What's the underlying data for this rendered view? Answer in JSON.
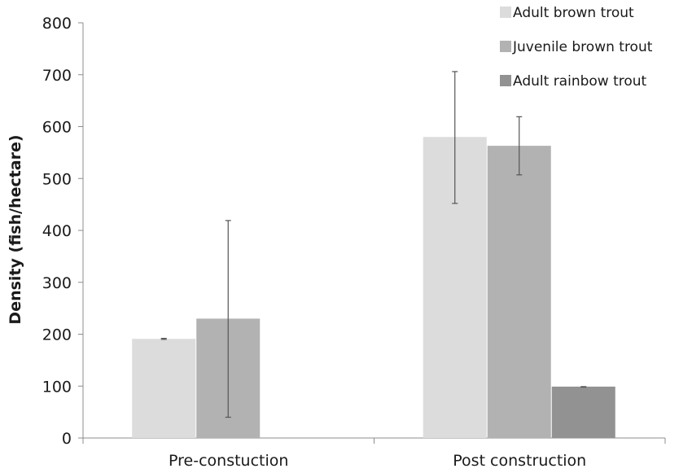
{
  "chart_data": {
    "type": "bar",
    "title": "",
    "xlabel": "",
    "ylabel": "Density (fish/hectare)",
    "ylim": [
      0,
      800
    ],
    "yticks": [
      0,
      100,
      200,
      300,
      400,
      500,
      600,
      700,
      800
    ],
    "categories": [
      "Pre-constuction",
      "Post construction"
    ],
    "series": [
      {
        "name": "Adult brown trout",
        "color": "#dcdcdc",
        "values": [
          191,
          580
        ],
        "errors": [
          [
            190,
            192
          ],
          [
            452,
            706
          ]
        ]
      },
      {
        "name": "Juvenile brown trout",
        "color": "#b2b2b2",
        "values": [
          230,
          563
        ],
        "errors": [
          [
            40,
            419
          ],
          [
            507,
            619
          ]
        ]
      },
      {
        "name": "Adult rainbow trout",
        "color": "#929292",
        "values": [
          0,
          99
        ],
        "errors": [
          null,
          [
            98,
            99
          ]
        ]
      }
    ],
    "grid": false,
    "legend_position": "top-right"
  }
}
